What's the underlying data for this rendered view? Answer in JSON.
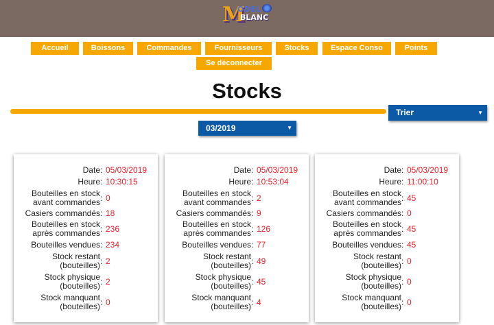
{
  "header": {
    "logo": {
      "letter": "M",
      "top": "ODEL",
      "bottom": "BLANC"
    }
  },
  "nav": {
    "items": [
      {
        "key": "accueil",
        "label": "Accueil"
      },
      {
        "key": "boissons",
        "label": "Boissons"
      },
      {
        "key": "commandes",
        "label": "Commandes"
      },
      {
        "key": "fournisseurs",
        "label": "Fournisseurs"
      },
      {
        "key": "stocks",
        "label": "Stocks"
      },
      {
        "key": "espace-conso",
        "label": "Espace Conso"
      },
      {
        "key": "points",
        "label": "Points"
      },
      {
        "key": "se-deconnecter",
        "label": "Se déconnecter"
      }
    ]
  },
  "page": {
    "title": "Stocks"
  },
  "controls": {
    "sort_select": {
      "value": "Trier",
      "arrow": "▼"
    },
    "month_select": {
      "value": "03/2019",
      "arrow": "▼"
    }
  },
  "field_labels": {
    "date": "Date",
    "heure": "Heure",
    "avant": [
      "Bouteilles en stock",
      "avant commandes"
    ],
    "casiers": "Casiers commandés",
    "apres": [
      "Bouteilles en stock",
      "après commandes"
    ],
    "vendues": "Bouteilles vendues",
    "restant": [
      "Stock restant",
      "(bouteilles)"
    ],
    "physique": [
      "Stock physique",
      "(bouteilles)"
    ],
    "manquant": [
      "Stock manquant",
      "(bouteilles)"
    ],
    "separator": ":"
  },
  "cards": [
    {
      "date": "05/03/2019",
      "heure": "10:30:15",
      "avant": "0",
      "casiers": "18",
      "apres": "236",
      "vendues": "234",
      "restant": "2",
      "physique": "2",
      "manquant": "0"
    },
    {
      "date": "05/03/2019",
      "heure": "10:53:04",
      "avant": "2",
      "casiers": "9",
      "apres": "126",
      "vendues": "77",
      "restant": "49",
      "physique": "45",
      "manquant": "4"
    },
    {
      "date": "05/03/2019",
      "heure": "11:00:10",
      "avant": "45",
      "casiers": "0",
      "apres": "45",
      "vendues": "45",
      "restant": "0",
      "physique": "0",
      "manquant": "0"
    }
  ]
}
